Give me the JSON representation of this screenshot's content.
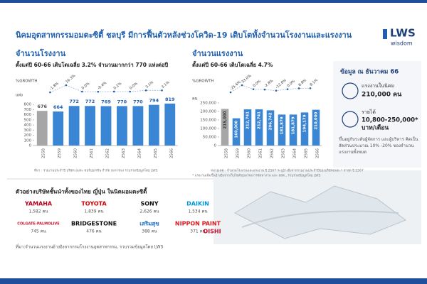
{
  "header": {
    "title": "นิคมอุตสาหกรรมอมตะซิตี้ ชลบุรี มีการฟื้นตัวหลังช่วงโควิด-19 เติบโตทั้งจำนวนโรงงานและแรงงาน",
    "logo": "LWS",
    "logo_sub": "wisdom"
  },
  "chart_data": [
    {
      "type": "bar",
      "title": "จำนวนโรงงาน",
      "subtitle": "ตั้งแต่ปี 60-66 เติบโตเฉลี่ย 3.2% จำนวนมากกว่า 770 แห่งต่อปี",
      "growth_title": "%GROWTH",
      "y_label": "แห่ง",
      "categories": [
        "2558",
        "2559",
        "2560",
        "2561",
        "2562",
        "2563",
        "2564",
        "2565",
        "2566"
      ],
      "values": [
        676,
        664,
        772,
        772,
        769,
        770,
        770,
        794,
        819
      ],
      "colors": [
        "#a6a6a6",
        "#3a86d4",
        "#3a86d4",
        "#3a86d4",
        "#3a86d4",
        "#3a86d4",
        "#3a86d4",
        "#3a86d4",
        "#3a86d4"
      ],
      "growth": [
        -1.8,
        16.3,
        0.0,
        -0.4,
        0.1,
        0.0,
        3.1,
        3.1
      ],
      "growth_labels": [
        "-1.8%",
        "16.3%",
        "0.0%",
        "-0.4%",
        "0.1%",
        "0.0%",
        "3.1%",
        "3.1%"
      ],
      "ylim": [
        0,
        900
      ],
      "yticks": [
        0,
        100,
        200,
        300,
        400,
        500,
        600,
        700,
        800
      ],
      "source": "ที่มา : รายงานประจำปี บริษัท อมตะ คอร์ปอเรชัน จำกัด (มหาชน) รวบรวมข้อมูลโดย LWS"
    },
    {
      "type": "bar",
      "title": "จำนวนแรงงาน",
      "subtitle": "ตั้งแต่ปี 60-66 เติบโตเฉลี่ย 4.7%",
      "growth_title": "%GROWTH",
      "y_label": "คน",
      "categories": [
        "2558",
        "2559",
        "2560",
        "2561",
        "2562",
        "2563",
        "2564",
        "2565",
        "2566"
      ],
      "values": [
        215000,
        160000,
        212741,
        212741,
        206742,
        181879,
        181879,
        194179,
        210000
      ],
      "value_labels": [
        "215,000",
        "160,000",
        "212,741",
        "212,741",
        "206,742",
        "181,879",
        "181,879",
        "194,179",
        "210,000"
      ],
      "colors": [
        "#a6a6a6",
        "#3a86d4",
        "#3a86d4",
        "#3a86d4",
        "#3a86d4",
        "#3a86d4",
        "#3a86d4",
        "#3a86d4",
        "#3a86d4"
      ],
      "growth": [
        -25.6,
        33.0,
        0.0,
        -2.8,
        -12.0,
        0.0,
        6.8,
        8.1
      ],
      "growth_labels": [
        "-25.6%",
        "33.0%",
        "0.0%",
        "-2.8%",
        "-12.0%",
        "0.0%",
        "6.8%",
        "8.1%"
      ],
      "ylim": [
        0,
        250000
      ],
      "yticks": [
        0,
        {
          "value": 50000,
          "label": "50,000"
        },
        {
          "value": 100000,
          "label": "100,000"
        },
        {
          "value": 150000,
          "label": "150,000"
        },
        {
          "value": 200000,
          "label": "200,000"
        },
        {
          "value": 250000,
          "label": "250,000"
        }
      ],
      "source": "หมายเหตุ : จำนวนโรงงานและแรงงาน ปี 2567 ระบุอ้างอิงจากรายงานประจำปีของบริษัทอมตะฯ ล่าสุด ปี 2567",
      "source2": "* แรงงานเพิ่มขึ้นอ้างอิงจากเว็บไซต์ของกรมการจัดหางาน และ สสค., รวบรวมข้อมูลโดย LWS"
    }
  ],
  "info": {
    "title": "ข้อมูล ณ ธันวาคม 66",
    "labor_label": "แรงงานในนิคม",
    "labor_value": "210,000 คน",
    "income_label": "รายได้",
    "income_value": "10,800-250,000*",
    "income_unit": "บาท/เดือน",
    "note": "ขึ้นอยู่กับระดับผู้จัดการ และผู้บริหาร คิดเป็นสัดส่วนประมาณ 10% -20% ของจำนวนแรงงานทั้งหมด"
  },
  "companies": {
    "title": "ตัวอย่างบริษัทชั้นนำทั้งของไทย ญี่ปุ่น ในนิคมอมตะซิตี้",
    "items": [
      {
        "name": "YAMAHA",
        "workers": "1,582 คน"
      },
      {
        "name": "TOYOTA",
        "workers": "1,839 คน"
      },
      {
        "name": "SONY",
        "workers": "2,626 คน"
      },
      {
        "name": "DAIKIN",
        "workers": "1,534 คน"
      },
      {
        "name": "COLGATE-PALMOLIVE",
        "workers": "745 คน"
      },
      {
        "name": "BRIDGESTONE",
        "workers": "476 คน"
      },
      {
        "name": "เสริมสุข",
        "workers": "388 คน"
      },
      {
        "name": "NIPPON PAINT",
        "workers": "371 คน"
      },
      {
        "name": "OISHI",
        "workers": null
      }
    ],
    "source": "ที่มา:จำนวนแรงงานอ้างอิงจากกรมโรงงานอุตสาหกรรม, รวบรวมข้อมูลโดย LWS"
  }
}
